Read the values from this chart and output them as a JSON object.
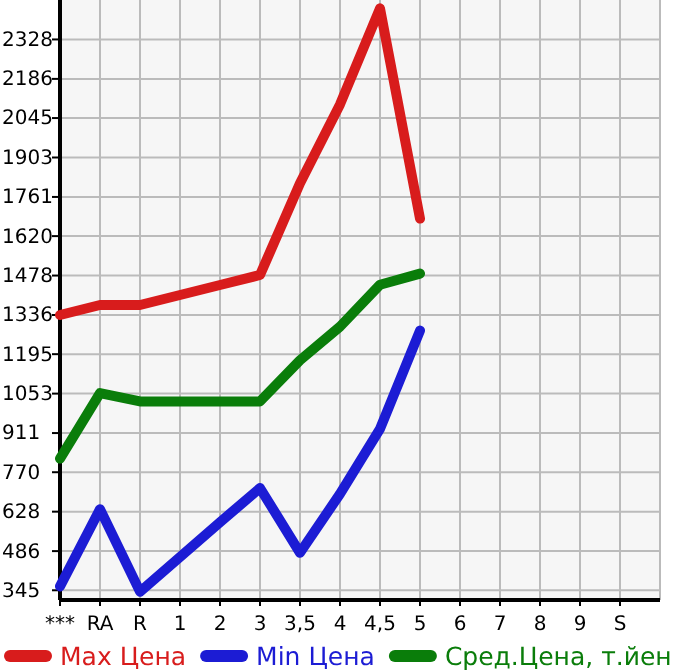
{
  "chart_data": {
    "type": "line",
    "categories": [
      "***",
      "RA",
      "R",
      "1",
      "2",
      "3",
      "3,5",
      "4",
      "4,5",
      "5",
      "6",
      "7",
      "8",
      "9",
      "S"
    ],
    "series": [
      {
        "name": "Max Цена",
        "color": "#d81c1c",
        "values": [
          1336,
          1372,
          1372,
          1408,
          1444,
          1480,
          1810,
          2094,
          2440,
          1683,
          null,
          null,
          null,
          null,
          null
        ]
      },
      {
        "name": "Min Цена",
        "color": "#1c1cd4",
        "values": [
          359,
          637,
          340,
          465,
          590,
          713,
          480,
          692,
          926,
          1280,
          null,
          null,
          null,
          null,
          null
        ]
      },
      {
        "name": "Сред.Цена, т.йен",
        "color": "#0a7d0a",
        "values": [
          819,
          1055,
          1025,
          1025,
          1025,
          1025,
          1173,
          1294,
          1445,
          1485,
          null,
          null,
          null,
          null,
          null
        ]
      }
    ],
    "ylim": [
      310,
      2470
    ],
    "yticks": [
      345,
      486,
      628,
      770,
      911,
      1053,
      1195,
      1336,
      1478,
      1620,
      1761,
      1903,
      2045,
      2186,
      2328
    ],
    "grid": true,
    "legend": "bottom",
    "marker": "none",
    "line_style": "solid"
  }
}
